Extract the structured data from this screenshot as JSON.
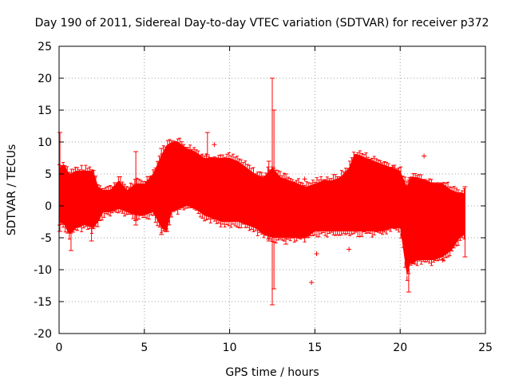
{
  "chart_data": {
    "type": "scatter",
    "title": "Day 190 of 2011, Sidereal Day-to-day VTEC variation (SDTVAR) for receiver p372",
    "xlabel": "GPS time / hours",
    "ylabel": "SDTVAR / TECUs",
    "xlim": [
      0,
      25
    ],
    "ylim": [
      -20,
      25
    ],
    "xticks": [
      0,
      5,
      10,
      15,
      20,
      25
    ],
    "yticks": [
      -20,
      -15,
      -10,
      -5,
      0,
      5,
      10,
      15,
      20,
      25
    ],
    "grid": true,
    "color": "#ff0000",
    "marker": "+ with error bars",
    "envelope": {
      "x": [
        0.0,
        0.3,
        0.6,
        1.0,
        1.5,
        2.0,
        2.3,
        2.6,
        3.0,
        3.5,
        4.0,
        4.5,
        5.0,
        5.5,
        6.0,
        6.3,
        6.6,
        7.0,
        7.5,
        8.0,
        8.5,
        9.0,
        9.5,
        10.0,
        10.5,
        11.0,
        11.5,
        12.0,
        12.5,
        13.0,
        13.5,
        14.0,
        14.5,
        15.0,
        15.5,
        16.0,
        16.5,
        17.0,
        17.3,
        17.6,
        18.0,
        18.5,
        19.0,
        19.5,
        20.0,
        20.4,
        20.6,
        20.8,
        21.0,
        21.5,
        22.0,
        22.5,
        23.0,
        23.5,
        23.8
      ],
      "upper": [
        6.0,
        6.5,
        5.0,
        5.5,
        5.5,
        5.5,
        3.0,
        2.5,
        2.5,
        4.0,
        2.5,
        3.5,
        3.5,
        5.0,
        8.0,
        9.5,
        10.0,
        10.0,
        9.0,
        8.5,
        7.5,
        7.5,
        7.5,
        7.5,
        7.0,
        6.0,
        5.0,
        4.5,
        6.0,
        4.5,
        4.0,
        3.5,
        3.0,
        3.5,
        4.0,
        4.0,
        4.5,
        6.0,
        8.0,
        8.0,
        7.5,
        7.0,
        6.5,
        6.0,
        5.5,
        3.0,
        4.5,
        4.5,
        4.5,
        4.0,
        3.5,
        3.5,
        2.5,
        2.0,
        2.0
      ],
      "lower": [
        -2.5,
        -3.0,
        -4.5,
        -3.5,
        -3.0,
        -3.5,
        -2.5,
        -1.0,
        -1.0,
        -0.5,
        -1.0,
        -1.5,
        -1.5,
        -1.0,
        -3.5,
        -4.0,
        -1.0,
        -0.5,
        0.0,
        -0.5,
        -1.5,
        -2.0,
        -2.5,
        -2.5,
        -2.5,
        -3.0,
        -3.5,
        -4.5,
        -5.0,
        -5.0,
        -5.0,
        -5.0,
        -5.0,
        -4.0,
        -4.0,
        -4.0,
        -4.0,
        -4.0,
        -4.0,
        -4.0,
        -4.0,
        -4.0,
        -4.0,
        -3.5,
        -3.5,
        -11.0,
        -9.0,
        -9.0,
        -8.5,
        -8.5,
        -8.5,
        -8.0,
        -7.0,
        -5.0,
        -4.5
      ]
    },
    "spikes": [
      {
        "x": 0.05,
        "ymin": -4.0,
        "ymax": 11.5
      },
      {
        "x": 0.7,
        "ymin": -7.0,
        "ymax": 5.0
      },
      {
        "x": 1.9,
        "ymin": -5.5,
        "ymax": 5.0
      },
      {
        "x": 4.5,
        "ymin": -3.0,
        "ymax": 8.5
      },
      {
        "x": 6.0,
        "ymin": -4.5,
        "ymax": 9.0
      },
      {
        "x": 8.7,
        "ymin": 8.0,
        "ymax": 11.5
      },
      {
        "x": 12.5,
        "ymin": -15.5,
        "ymax": 20.0
      },
      {
        "x": 12.6,
        "ymin": -13.0,
        "ymax": 15.0
      },
      {
        "x": 12.3,
        "ymin": -5.5,
        "ymax": 7.0
      },
      {
        "x": 13.3,
        "ymin": -6.0,
        "ymax": 5.0
      },
      {
        "x": 20.5,
        "ymin": -13.5,
        "ymax": 4.0
      },
      {
        "x": 23.8,
        "ymin": -8.0,
        "ymax": 3.0
      }
    ],
    "outliers": [
      {
        "x": 9.1,
        "y": 9.6
      },
      {
        "x": 14.4,
        "y": 4.2
      },
      {
        "x": 14.8,
        "y": -12.0
      },
      {
        "x": 15.1,
        "y": -7.5
      },
      {
        "x": 17.0,
        "y": -6.8
      },
      {
        "x": 19.6,
        "y": 6.0
      },
      {
        "x": 21.4,
        "y": 7.8
      },
      {
        "x": 22.5,
        "y": -8.5
      }
    ]
  }
}
